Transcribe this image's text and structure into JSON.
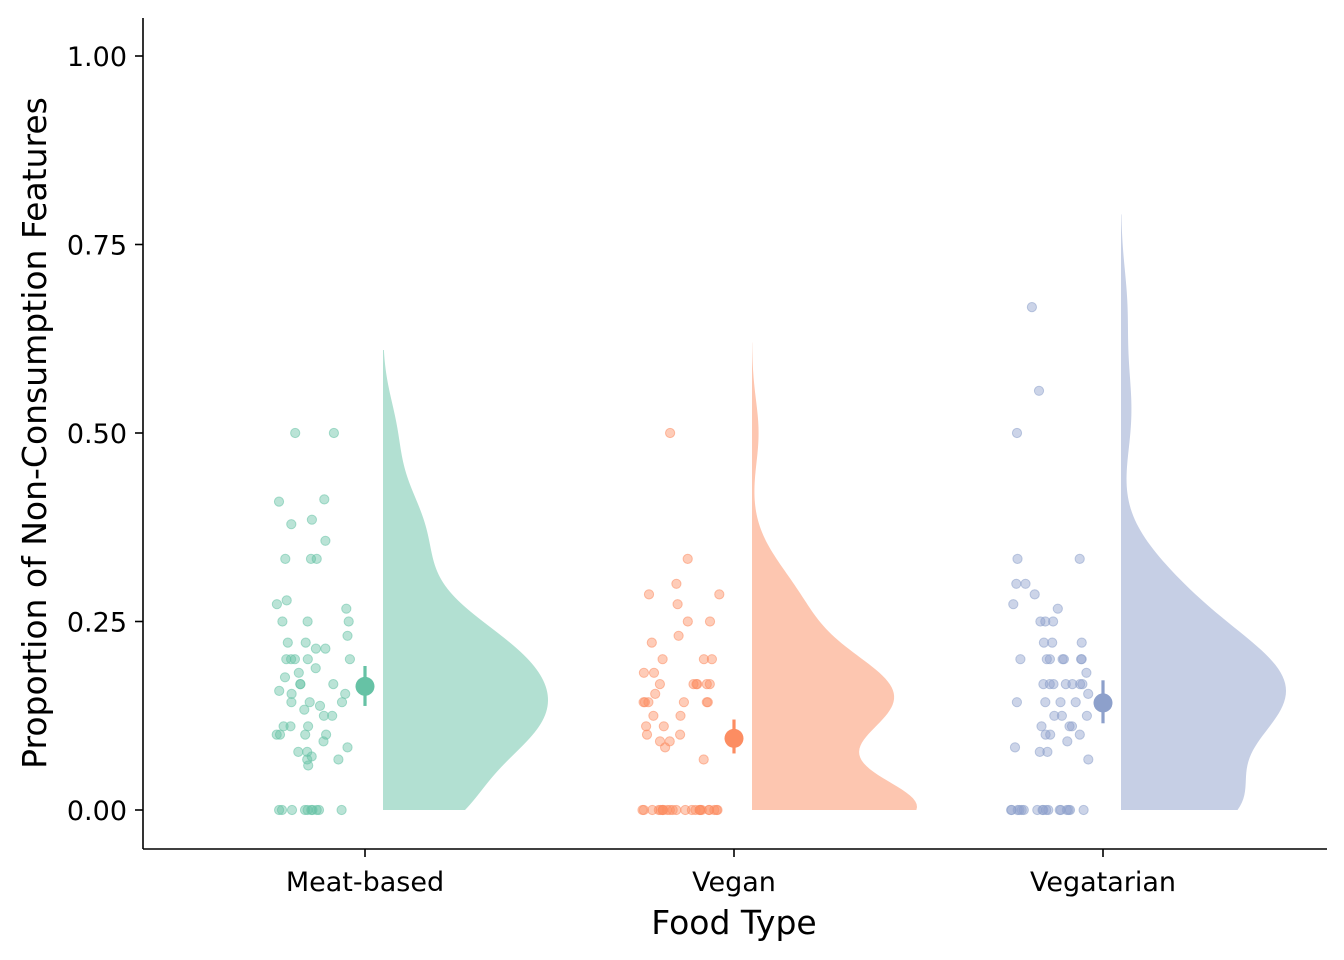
{
  "chart_data": {
    "type": "raincloud",
    "title": "",
    "xlabel": "Food Type",
    "ylabel": "Proportion of Non-Consumption Features",
    "ylim": [
      -0.05,
      1.05
    ],
    "yticks": [
      0.0,
      0.25,
      0.5,
      0.75,
      1.0
    ],
    "ytick_labels": [
      "0.00",
      "0.25",
      "0.50",
      "0.75",
      "1.00"
    ],
    "categories": [
      "Meat-based",
      "Vegan",
      "Vegatarian"
    ],
    "grid": false,
    "legend": "none",
    "series": [
      {
        "category": "Meat-based",
        "color": "#66c2a5",
        "density_color": "#b2e0d2",
        "mean": 0.164,
        "ci": [
          0.138,
          0.191
        ],
        "density_max_y": 0.61,
        "density_mode": 0.13,
        "points": [
          0,
          0,
          0,
          0,
          0,
          0,
          0,
          0,
          0,
          0,
          0.5,
          0.5,
          0.412,
          0.409,
          0.385,
          0.379,
          0.357,
          0.333,
          0.333,
          0.333,
          0.278,
          0.273,
          0.267,
          0.25,
          0.25,
          0.25,
          0.231,
          0.222,
          0.222,
          0.214,
          0.214,
          0.2,
          0.2,
          0.2,
          0.2,
          0.2,
          0.188,
          0.182,
          0.176,
          0.167,
          0.167,
          0.167,
          0.158,
          0.154,
          0.154,
          0.143,
          0.143,
          0.143,
          0.138,
          0.133,
          0.125,
          0.125,
          0.111,
          0.111,
          0.111,
          0.1,
          0.1,
          0.1,
          0.1,
          0.091,
          0.083,
          0.077,
          0.077,
          0.071,
          0.067,
          0.067,
          0.059
        ]
      },
      {
        "category": "Vegan",
        "color": "#fc8d62",
        "density_color": "#fdc6b0",
        "mean": 0.095,
        "ci": [
          0.075,
          0.12
        ],
        "density_max_y": 0.62,
        "density_mode": 0.02,
        "points": [
          0,
          0,
          0,
          0,
          0,
          0,
          0,
          0,
          0,
          0,
          0,
          0,
          0,
          0,
          0,
          0,
          0,
          0,
          0,
          0,
          0,
          0,
          0,
          0,
          0.5,
          0.333,
          0.3,
          0.286,
          0.286,
          0.273,
          0.25,
          0.25,
          0.231,
          0.222,
          0.2,
          0.2,
          0.2,
          0.182,
          0.182,
          0.167,
          0.167,
          0.167,
          0.167,
          0.167,
          0.167,
          0.154,
          0.143,
          0.143,
          0.143,
          0.143,
          0.143,
          0.143,
          0.125,
          0.125,
          0.111,
          0.111,
          0.1,
          0.1,
          0.091,
          0.091,
          0.083,
          0.067
        ]
      },
      {
        "category": "Vegatarian",
        "color": "#8da0cb",
        "density_color": "#c6cfe5",
        "mean": 0.142,
        "ci": [
          0.115,
          0.172
        ],
        "density_max_y": 0.79,
        "density_mode": 0.15,
        "points": [
          0,
          0,
          0,
          0,
          0,
          0,
          0,
          0,
          0,
          0,
          0,
          0,
          0,
          0,
          0,
          0,
          0,
          0.667,
          0.556,
          0.5,
          0.333,
          0.333,
          0.3,
          0.3,
          0.286,
          0.273,
          0.267,
          0.25,
          0.25,
          0.25,
          0.222,
          0.222,
          0.222,
          0.2,
          0.2,
          0.2,
          0.2,
          0.2,
          0.2,
          0.2,
          0.182,
          0.167,
          0.167,
          0.167,
          0.167,
          0.167,
          0.167,
          0.167,
          0.154,
          0.143,
          0.143,
          0.143,
          0.143,
          0.125,
          0.125,
          0.125,
          0.111,
          0.111,
          0.111,
          0.1,
          0.1,
          0.1,
          0.091,
          0.083,
          0.077,
          0.077,
          0.067
        ]
      }
    ]
  }
}
